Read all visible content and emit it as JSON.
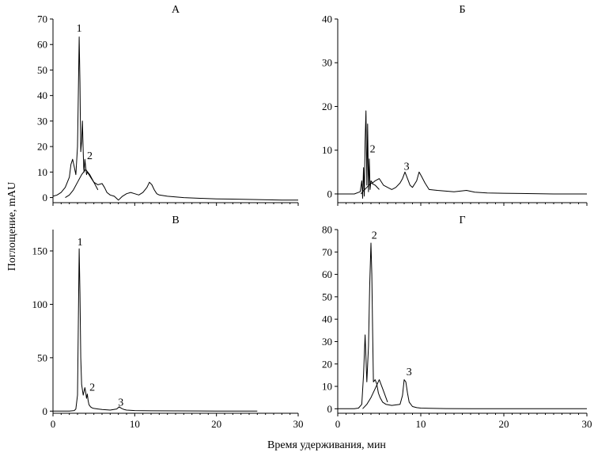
{
  "chart_data": [
    {
      "type": "line",
      "title": "А",
      "xlim": [
        0,
        30
      ],
      "ylim": [
        -2,
        70
      ],
      "xticks": [
        0,
        10,
        20,
        30
      ],
      "yticks": [
        0,
        10,
        20,
        30,
        40,
        50,
        60,
        70
      ],
      "show_x_tick_labels": false,
      "series": [
        {
          "x": [
            0,
            0.5,
            1,
            1.5,
            2,
            2.2,
            2.4,
            2.6,
            2.8,
            3.0,
            3.1,
            3.2,
            3.3,
            3.35,
            3.4,
            3.5,
            3.6,
            3.7,
            3.75,
            3.8,
            3.9,
            4.0,
            4.1,
            4.2,
            4.4,
            4.6,
            5.0,
            5.5,
            6.0,
            6.3,
            6.6,
            7.0,
            7.5,
            8.0,
            8.5,
            9.0,
            9.5,
            10.0,
            10.5,
            11.0,
            11.5,
            11.8,
            12.1,
            12.4,
            12.7,
            13.0,
            14.0,
            16.0,
            18.0,
            20.0,
            22.0,
            25.0,
            28.0,
            30.0
          ],
          "y": [
            0.5,
            1,
            2,
            4,
            8,
            13,
            15,
            12,
            9,
            20,
            40,
            63,
            45,
            30,
            18,
            22,
            30,
            18,
            12,
            10,
            15,
            12,
            9,
            10,
            9,
            8,
            6,
            5,
            5.5,
            4,
            2,
            1,
            0.5,
            -1,
            0.5,
            1.5,
            2,
            1.5,
            1,
            2,
            4,
            6,
            5,
            3,
            1.5,
            1,
            0.5,
            0,
            -0.3,
            -0.5,
            -0.6,
            -0.8,
            -1,
            -1
          ],
          "name": ""
        },
        {
          "x": [
            1.5,
            2.0,
            2.5,
            3.0,
            3.5,
            4.0,
            4.5,
            5.0,
            5.5
          ],
          "y": [
            0,
            1,
            3,
            6,
            9,
            11,
            9,
            6,
            3
          ],
          "name": ""
        }
      ],
      "annotations": [
        {
          "text": "1",
          "x": 3.2,
          "y": 65
        },
        {
          "text": "2",
          "x": 4.5,
          "y": 15
        }
      ]
    },
    {
      "type": "line",
      "title": "Б",
      "xlim": [
        0,
        30
      ],
      "ylim": [
        -2,
        40
      ],
      "xticks": [
        0,
        10,
        20,
        30
      ],
      "yticks": [
        0,
        10,
        20,
        30,
        40
      ],
      "show_x_tick_labels": false,
      "series": [
        {
          "x": [
            0,
            1,
            2,
            2.7,
            2.9,
            3.0,
            3.1,
            3.2,
            3.3,
            3.4,
            3.5,
            3.6,
            3.7,
            3.8,
            3.9,
            4.0,
            4.2,
            4.5,
            5.0,
            5.5,
            6.0,
            6.5,
            7.0,
            7.5,
            7.8,
            8.1,
            8.4,
            8.7,
            9.0,
            9.5,
            9.8,
            10.1,
            10.5,
            11.0,
            12.0,
            14.0,
            15.5,
            16.5,
            18.0,
            22.0,
            26.0,
            30.0
          ],
          "y": [
            0,
            0,
            0,
            0.5,
            3,
            -1,
            6,
            -0.5,
            12,
            19,
            2,
            16,
            0.5,
            8,
            1,
            3,
            2.5,
            3,
            3.5,
            2,
            1.5,
            1,
            1.5,
            2.5,
            3.5,
            5,
            3.5,
            2,
            1.5,
            3,
            5,
            4,
            2.5,
            1,
            0.8,
            0.5,
            0.8,
            0.4,
            0.2,
            0.1,
            0,
            0
          ],
          "name": ""
        },
        {
          "x": [
            2.8,
            3.0,
            3.5,
            4.0,
            4.5,
            5.0
          ],
          "y": [
            0,
            0.5,
            1.5,
            2.5,
            2.0,
            1.0
          ],
          "name": ""
        }
      ],
      "annotations": [
        {
          "text": "2",
          "x": 4.2,
          "y": 9.5
        },
        {
          "text": "3",
          "x": 8.3,
          "y": 5.5
        }
      ]
    },
    {
      "type": "line",
      "title": "В",
      "xlim": [
        0,
        30
      ],
      "ylim": [
        -2,
        170
      ],
      "xticks": [
        0,
        10,
        20,
        30
      ],
      "yticks": [
        0,
        50,
        100,
        150
      ],
      "show_x_tick_labels": true,
      "series": [
        {
          "x": [
            0,
            1,
            2,
            2.6,
            2.8,
            3.0,
            3.1,
            3.2,
            3.3,
            3.4,
            3.5,
            3.7,
            3.9,
            4.0,
            4.1,
            4.2,
            4.3,
            4.4,
            4.6,
            4.8,
            5.0,
            5.5,
            6.0,
            7.0,
            7.8,
            8.1,
            8.4,
            8.7,
            9.0,
            10.0,
            12.0,
            15.0,
            20.0,
            25.0
          ],
          "y": [
            0,
            0,
            0,
            0.5,
            2,
            15,
            80,
            152,
            110,
            50,
            25,
            15,
            22,
            18,
            12,
            16,
            10,
            6,
            4,
            3,
            2.5,
            2,
            1.5,
            1,
            2,
            4,
            2.5,
            1.5,
            1,
            0.5,
            0.3,
            0.2,
            0.1,
            0
          ],
          "name": ""
        }
      ],
      "annotations": [
        {
          "text": "1",
          "x": 3.3,
          "y": 155
        },
        {
          "text": "2",
          "x": 4.8,
          "y": 19
        },
        {
          "text": "3",
          "x": 8.3,
          "y": 5
        }
      ]
    },
    {
      "type": "line",
      "title": "Г",
      "xlim": [
        0,
        30
      ],
      "ylim": [
        -2,
        80
      ],
      "xticks": [
        0,
        10,
        20,
        30
      ],
      "yticks": [
        0,
        10,
        20,
        30,
        40,
        50,
        60,
        70,
        80
      ],
      "show_x_tick_labels": true,
      "series": [
        {
          "x": [
            0,
            1,
            2,
            2.5,
            2.9,
            3.1,
            3.3,
            3.5,
            3.7,
            3.85,
            4.0,
            4.1,
            4.2,
            4.3,
            4.5,
            4.7,
            4.9,
            5.1,
            5.4,
            5.8,
            6.5,
            7.5,
            7.8,
            8.0,
            8.2,
            8.4,
            8.6,
            9.0,
            9.5,
            10.0,
            11.0,
            13.0,
            16.0,
            20.0,
            25.0,
            30.0
          ],
          "y": [
            0,
            0,
            0,
            0.3,
            2,
            15,
            33,
            12,
            28,
            55,
            74,
            60,
            35,
            12,
            13,
            11,
            7,
            5,
            3,
            2,
            1.5,
            2,
            6,
            13,
            12,
            7,
            3,
            1,
            0.5,
            0.3,
            0.2,
            0.1,
            0,
            0,
            0,
            0
          ],
          "name": ""
        },
        {
          "x": [
            3.0,
            3.5,
            4.0,
            4.5,
            5.0,
            5.5,
            6.0
          ],
          "y": [
            0,
            2,
            5,
            9,
            13,
            8,
            3
          ],
          "name": ""
        }
      ],
      "annotations": [
        {
          "text": "2",
          "x": 4.4,
          "y": 76
        },
        {
          "text": "3",
          "x": 8.6,
          "y": 15
        }
      ]
    }
  ],
  "axis_titles": {
    "x": "Время удерживания, мин",
    "y": "Поглощение, mAU"
  }
}
